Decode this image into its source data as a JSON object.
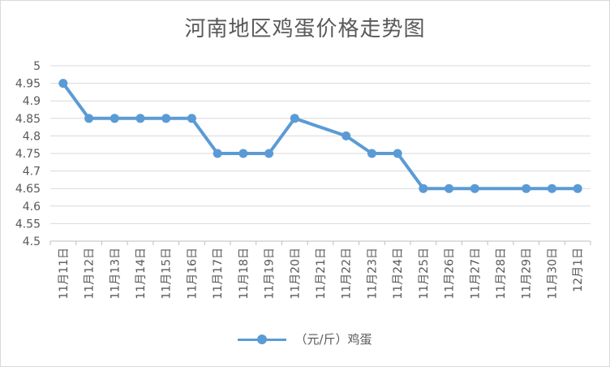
{
  "chart_data": {
    "type": "line",
    "title": "河南地区鸡蛋价格走势图",
    "categories": [
      "11月11日",
      "11月12日",
      "11月13日",
      "11月14日",
      "11月15日",
      "11月16日",
      "11月17日",
      "11月18日",
      "11月19日",
      "11月20日",
      "11月21日",
      "11月22日",
      "11月23日",
      "11月24日",
      "11月25日",
      "11月26日",
      "11月27日",
      "11月28日",
      "11月29日",
      "11月30日",
      "12月1日"
    ],
    "series": [
      {
        "name": "（元/斤）鸡蛋",
        "values": [
          4.95,
          4.85,
          4.85,
          4.85,
          4.85,
          4.85,
          4.75,
          4.75,
          4.75,
          4.85,
          null,
          4.8,
          4.75,
          4.75,
          4.65,
          4.65,
          4.65,
          null,
          4.65,
          4.65,
          4.65
        ],
        "color": "#5b9bd5"
      }
    ],
    "ylim": [
      4.5,
      5
    ],
    "yticks": [
      "4.5",
      "4.55",
      "4.6",
      "4.65",
      "4.7",
      "4.75",
      "4.8",
      "4.85",
      "4.9",
      "4.95",
      "5"
    ],
    "grid": true,
    "legend": "bottom"
  }
}
